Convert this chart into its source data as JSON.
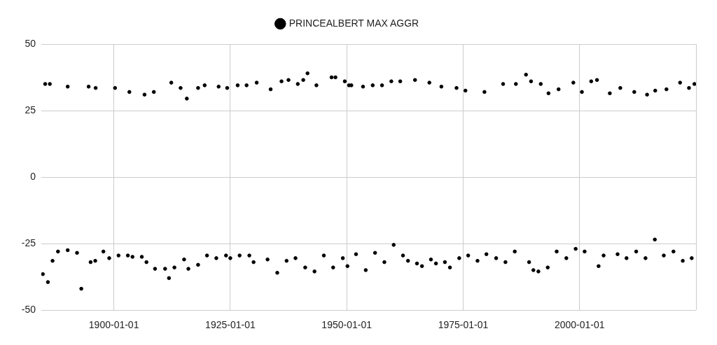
{
  "chart_data": {
    "type": "scatter",
    "x": [
      "1885-04",
      "1886-04",
      "1890-02",
      "1894-08",
      "1896-02",
      "1900-04",
      "1903-05",
      "1906-08",
      "1908-08",
      "1912-05",
      "1914-05",
      "1915-09",
      "1918-02",
      "1919-07",
      "1922-07",
      "1924-05",
      "1926-08",
      "1928-07",
      "1930-09",
      "1933-09",
      "1936-01",
      "1937-07",
      "1939-07",
      "1940-09",
      "1941-08",
      "1943-07",
      "1946-10",
      "1947-08",
      "1949-08",
      "1950-07",
      "1951-01",
      "1953-07",
      "1955-08",
      "1957-08",
      "1959-08",
      "1961-07",
      "1964-09",
      "1967-10",
      "1970-05",
      "1973-08",
      "1975-07",
      "1979-08",
      "1983-08",
      "1986-05",
      "1988-07",
      "1989-08",
      "1991-09",
      "1993-05",
      "1995-07",
      "1998-09",
      "2000-07",
      "2002-07",
      "2003-10",
      "2006-07",
      "2008-10",
      "2011-10",
      "2014-07",
      "2016-04",
      "2018-09",
      "2021-08",
      "2023-07",
      "2024-09",
      "1884-10",
      "1885-11",
      "1886-11",
      "1888-01",
      "1890-02",
      "1892-02",
      "1893-01",
      "1895-01",
      "1896-01",
      "1897-10",
      "1899-01",
      "1901-01",
      "1903-01",
      "1904-01",
      "1906-01",
      "1907-01",
      "1908-11",
      "1911-01",
      "1911-11",
      "1913-01",
      "1915-02",
      "1916-01",
      "1918-02",
      "1920-01",
      "1922-01",
      "1924-02",
      "1925-01",
      "1927-01",
      "1929-02",
      "1930-01",
      "1933-01",
      "1935-02",
      "1937-02",
      "1939-01",
      "1941-02",
      "1943-02",
      "1945-02",
      "1947-02",
      "1949-03",
      "1950-03",
      "1952-01",
      "1954-02",
      "1956-02",
      "1958-02",
      "1960-02",
      "1962-02",
      "1963-03",
      "1965-02",
      "1966-03",
      "1968-02",
      "1969-03",
      "1971-02",
      "1972-03",
      "1974-03",
      "1976-02",
      "1978-02",
      "1980-01",
      "1982-02",
      "1984-02",
      "1986-02",
      "1989-03",
      "1990-02",
      "1991-03",
      "1993-03",
      "1995-02",
      "1997-03",
      "1999-03",
      "2001-02",
      "2004-02",
      "2005-03",
      "2008-03",
      "2010-02",
      "2012-03",
      "2014-03",
      "2016-03",
      "2018-02",
      "2020-03",
      "2022-03",
      "2024-02"
    ],
    "series": [
      {
        "name": "PRINCEALBERT MAX AGGR",
        "color": "#000000",
        "values": [
          35,
          35,
          34,
          34,
          33.5,
          33.5,
          32,
          31,
          32,
          35.5,
          33.5,
          29.5,
          33.5,
          34.5,
          34,
          33.5,
          34.5,
          34.5,
          35.5,
          33,
          36,
          36.5,
          35,
          36.5,
          39,
          34.5,
          37.5,
          37.5,
          36,
          34.5,
          34.5,
          34,
          34.5,
          34.5,
          36,
          36,
          36.5,
          35.5,
          34,
          33.5,
          32.5,
          32,
          35,
          35,
          38.5,
          36,
          35,
          31.5,
          33,
          35.5,
          32,
          36,
          36.5,
          31.5,
          33.5,
          32,
          31,
          32.5,
          33,
          35.5,
          33.5,
          35,
          -36.5,
          -39.5,
          -31.5,
          -28,
          -27.5,
          -28.5,
          -42,
          -32,
          -31.5,
          -28,
          -30.5,
          -29.5,
          -29.5,
          -30,
          -30,
          -32,
          -34.5,
          -34.5,
          -38,
          -34,
          -31,
          -34.5,
          -33,
          -29.5,
          -30.5,
          -29.5,
          -30.5,
          -29.5,
          -29.5,
          -32,
          -31,
          -36,
          -31.5,
          -30.5,
          -34,
          -35.5,
          -29.5,
          -34,
          -30.5,
          -33.5,
          -29,
          -35,
          -28.5,
          -32,
          -25.5,
          -29.5,
          -31.5,
          -32.5,
          -33.5,
          -31,
          -32.5,
          -32,
          -34,
          -30.5,
          -29.5,
          -31.5,
          -29,
          -30.5,
          -32,
          -28,
          -32,
          -35,
          -35.5,
          -34,
          -28,
          -30.5,
          -27,
          -28,
          -33.5,
          -29.5,
          -29,
          -30.5,
          -28,
          -30.5,
          -23.5,
          -29.5,
          -28,
          -31.5,
          -30.5
        ]
      }
    ],
    "xlim": [
      "1884-06-01",
      "2025-01-01"
    ],
    "xticks": [
      "1900-01-01",
      "1925-01-01",
      "1950-01-01",
      "1975-01-01",
      "2000-01-01",
      {
        "value": "2025-01-01",
        "label": null
      }
    ],
    "ylim": [
      -50,
      50
    ],
    "yticks": [
      -50,
      -25,
      0,
      25,
      50
    ],
    "grid": true,
    "legend": "top",
    "marker": "circle"
  }
}
